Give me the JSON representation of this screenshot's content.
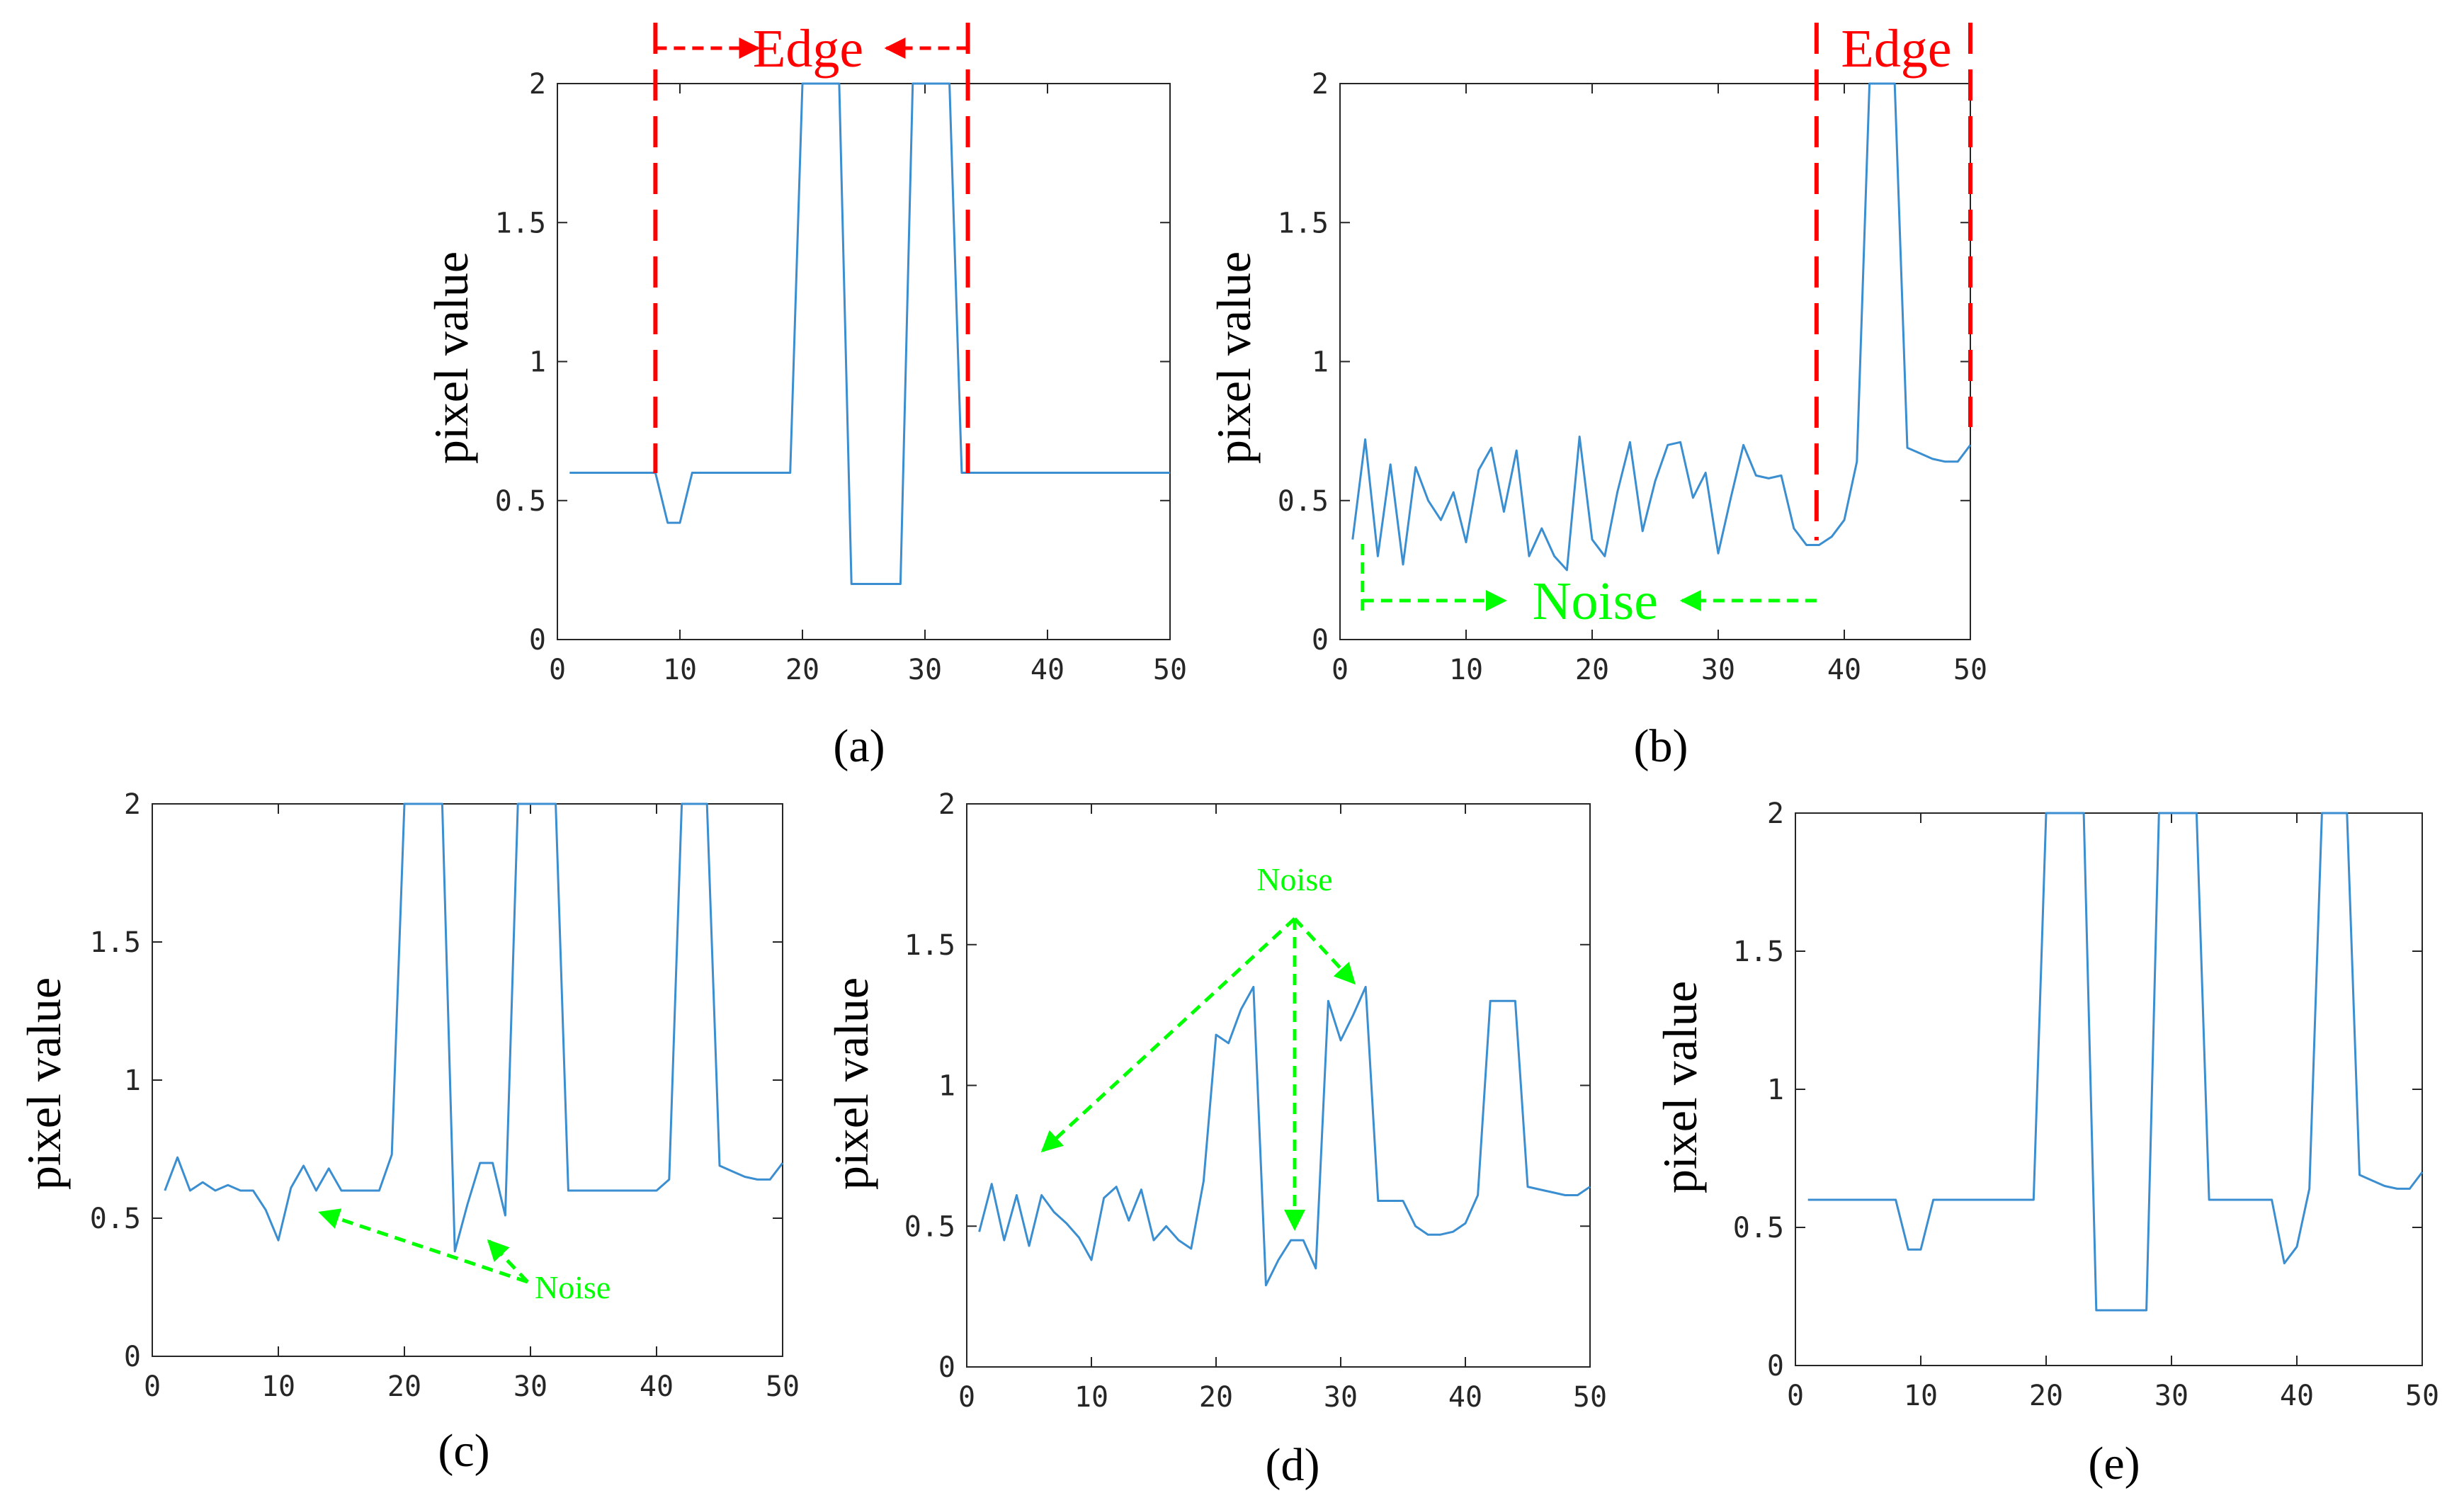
{
  "colors": {
    "line": "#3b8ed0",
    "edge": "#ff0000",
    "noise": "#00ff00",
    "axis": "#262626"
  },
  "chart_data": [
    {
      "id": "a",
      "type": "line",
      "panel_label": "(a)",
      "ylabel": "pixel value",
      "xlim": [
        0,
        50
      ],
      "ylim": [
        0,
        2
      ],
      "xticks": [
        "0",
        "10",
        "20",
        "30",
        "40",
        "50"
      ],
      "yticks": [
        "0",
        "0.5",
        "1",
        "1.5",
        "2"
      ],
      "grid": false,
      "x": [
        1,
        2,
        3,
        4,
        5,
        6,
        7,
        8,
        9,
        10,
        11,
        12,
        13,
        14,
        15,
        16,
        17,
        18,
        19,
        20,
        21,
        22,
        23,
        24,
        25,
        26,
        27,
        28,
        29,
        30,
        31,
        32,
        33,
        34,
        35,
        36,
        37,
        38,
        39,
        40,
        41,
        42,
        43,
        44,
        45,
        46,
        47,
        48,
        49,
        50
      ],
      "y": [
        0.6,
        0.6,
        0.6,
        0.6,
        0.6,
        0.6,
        0.6,
        0.6,
        0.42,
        0.42,
        0.6,
        0.6,
        0.6,
        0.6,
        0.6,
        0.6,
        0.6,
        0.6,
        0.6,
        2,
        2,
        2,
        2,
        0.2,
        0.2,
        0.2,
        0.2,
        0.2,
        2,
        2,
        2,
        2,
        0.6,
        0.6,
        0.6,
        0.6,
        0.6,
        0.6,
        0.6,
        0.6,
        0.6,
        0.6,
        0.6,
        0.6,
        0.6,
        0.6,
        0.6,
        0.6,
        0.6,
        0.6
      ],
      "annotations": [
        {
          "text": "Edge",
          "kind": "edge",
          "x_range": [
            8,
            33.5
          ]
        }
      ]
    },
    {
      "id": "b",
      "type": "line",
      "panel_label": "(b)",
      "ylabel": "pixel value",
      "xlim": [
        0,
        50
      ],
      "ylim": [
        0,
        2
      ],
      "xticks": [
        "0",
        "10",
        "20",
        "30",
        "40",
        "50"
      ],
      "yticks": [
        "0",
        "0.5",
        "1",
        "1.5",
        "2"
      ],
      "grid": false,
      "x": [
        1,
        2,
        3,
        4,
        5,
        6,
        7,
        8,
        9,
        10,
        11,
        12,
        13,
        14,
        15,
        16,
        17,
        18,
        19,
        20,
        21,
        22,
        23,
        24,
        25,
        26,
        27,
        28,
        29,
        30,
        31,
        32,
        33,
        34,
        35,
        36,
        37,
        38,
        39,
        40,
        41,
        42,
        43,
        44,
        45,
        46,
        47,
        48,
        49,
        50
      ],
      "y": [
        0.36,
        0.72,
        0.3,
        0.63,
        0.27,
        0.62,
        0.5,
        0.43,
        0.53,
        0.35,
        0.61,
        0.69,
        0.46,
        0.68,
        0.3,
        0.4,
        0.3,
        0.25,
        0.73,
        0.36,
        0.3,
        0.53,
        0.71,
        0.39,
        0.57,
        0.7,
        0.71,
        0.51,
        0.6,
        0.31,
        0.51,
        0.7,
        0.59,
        0.58,
        0.59,
        0.4,
        0.34,
        0.34,
        0.37,
        0.43,
        0.64,
        2,
        2,
        2,
        0.69,
        0.67,
        0.65,
        0.64,
        0.64,
        0.7
      ],
      "annotations": [
        {
          "text": "Edge",
          "kind": "edge",
          "x_range": [
            37.8,
            50
          ]
        },
        {
          "text": "Noise",
          "kind": "noise",
          "x_range": [
            1,
            37.8
          ]
        }
      ]
    },
    {
      "id": "c",
      "type": "line",
      "panel_label": "(c)",
      "ylabel": "pixel value",
      "xlim": [
        0,
        50
      ],
      "ylim": [
        0,
        2
      ],
      "xticks": [
        "0",
        "10",
        "20",
        "30",
        "40",
        "50"
      ],
      "yticks": [
        "0",
        "0.5",
        "1",
        "1.5",
        "2"
      ],
      "grid": false,
      "x": [
        1,
        2,
        3,
        4,
        5,
        6,
        7,
        8,
        9,
        10,
        11,
        12,
        13,
        14,
        15,
        16,
        17,
        18,
        19,
        20,
        21,
        22,
        23,
        24,
        25,
        26,
        27,
        28,
        29,
        30,
        31,
        32,
        33,
        34,
        35,
        36,
        37,
        38,
        39,
        40,
        41,
        42,
        43,
        44,
        45,
        46,
        47,
        48,
        49,
        50
      ],
      "y": [
        0.6,
        0.72,
        0.6,
        0.63,
        0.6,
        0.62,
        0.6,
        0.6,
        0.53,
        0.42,
        0.61,
        0.69,
        0.6,
        0.68,
        0.6,
        0.6,
        0.6,
        0.6,
        0.73,
        2,
        2,
        2,
        2,
        0.38,
        0.55,
        0.7,
        0.7,
        0.51,
        2,
        2,
        2,
        2,
        0.6,
        0.6,
        0.6,
        0.6,
        0.6,
        0.6,
        0.6,
        0.6,
        0.64,
        2,
        2,
        2,
        0.69,
        0.67,
        0.65,
        0.64,
        0.64,
        0.7
      ],
      "annotations": [
        {
          "text": "Noise",
          "kind": "noise"
        }
      ]
    },
    {
      "id": "d",
      "type": "line",
      "panel_label": "(d)",
      "ylabel": "pixel value",
      "xlim": [
        0,
        50
      ],
      "ylim": [
        0,
        2
      ],
      "xticks": [
        "0",
        "10",
        "20",
        "30",
        "40",
        "50"
      ],
      "yticks": [
        "0",
        "0.5",
        "1",
        "1.5",
        "2"
      ],
      "grid": false,
      "x": [
        1,
        2,
        3,
        4,
        5,
        6,
        7,
        8,
        9,
        10,
        11,
        12,
        13,
        14,
        15,
        16,
        17,
        18,
        19,
        20,
        21,
        22,
        23,
        24,
        25,
        26,
        27,
        28,
        29,
        30,
        31,
        32,
        33,
        34,
        35,
        36,
        37,
        38,
        39,
        40,
        41,
        42,
        43,
        44,
        45,
        46,
        47,
        48,
        49,
        50
      ],
      "y": [
        0.48,
        0.65,
        0.45,
        0.61,
        0.43,
        0.61,
        0.55,
        0.51,
        0.46,
        0.38,
        0.6,
        0.64,
        0.52,
        0.63,
        0.45,
        0.5,
        0.45,
        0.42,
        0.66,
        1.18,
        1.15,
        1.27,
        1.35,
        0.29,
        0.38,
        0.45,
        0.45,
        0.35,
        1.3,
        1.16,
        1.25,
        1.35,
        0.59,
        0.59,
        0.59,
        0.5,
        0.47,
        0.47,
        0.48,
        0.51,
        0.61,
        1.3,
        1.3,
        1.3,
        0.64,
        0.63,
        0.62,
        0.61,
        0.61,
        0.64
      ],
      "annotations": [
        {
          "text": "Noise",
          "kind": "noise"
        }
      ]
    },
    {
      "id": "e",
      "type": "line",
      "panel_label": "(e)",
      "ylabel": "pixel value",
      "xlim": [
        0,
        50
      ],
      "ylim": [
        0,
        2
      ],
      "xticks": [
        "0",
        "10",
        "20",
        "30",
        "40",
        "50"
      ],
      "yticks": [
        "0",
        "0.5",
        "1",
        "1.5",
        "2"
      ],
      "grid": false,
      "x": [
        1,
        2,
        3,
        4,
        5,
        6,
        7,
        8,
        9,
        10,
        11,
        12,
        13,
        14,
        15,
        16,
        17,
        18,
        19,
        20,
        21,
        22,
        23,
        24,
        25,
        26,
        27,
        28,
        29,
        30,
        31,
        32,
        33,
        34,
        35,
        36,
        37,
        38,
        39,
        40,
        41,
        42,
        43,
        44,
        45,
        46,
        47,
        48,
        49,
        50
      ],
      "y": [
        0.6,
        0.6,
        0.6,
        0.6,
        0.6,
        0.6,
        0.6,
        0.6,
        0.42,
        0.42,
        0.6,
        0.6,
        0.6,
        0.6,
        0.6,
        0.6,
        0.6,
        0.6,
        0.6,
        2,
        2,
        2,
        2,
        0.2,
        0.2,
        0.2,
        0.2,
        0.2,
        2,
        2,
        2,
        2,
        0.6,
        0.6,
        0.6,
        0.6,
        0.6,
        0.6,
        0.37,
        0.43,
        0.64,
        2,
        2,
        2,
        0.69,
        0.67,
        0.65,
        0.64,
        0.64,
        0.7
      ],
      "annotations": []
    }
  ]
}
